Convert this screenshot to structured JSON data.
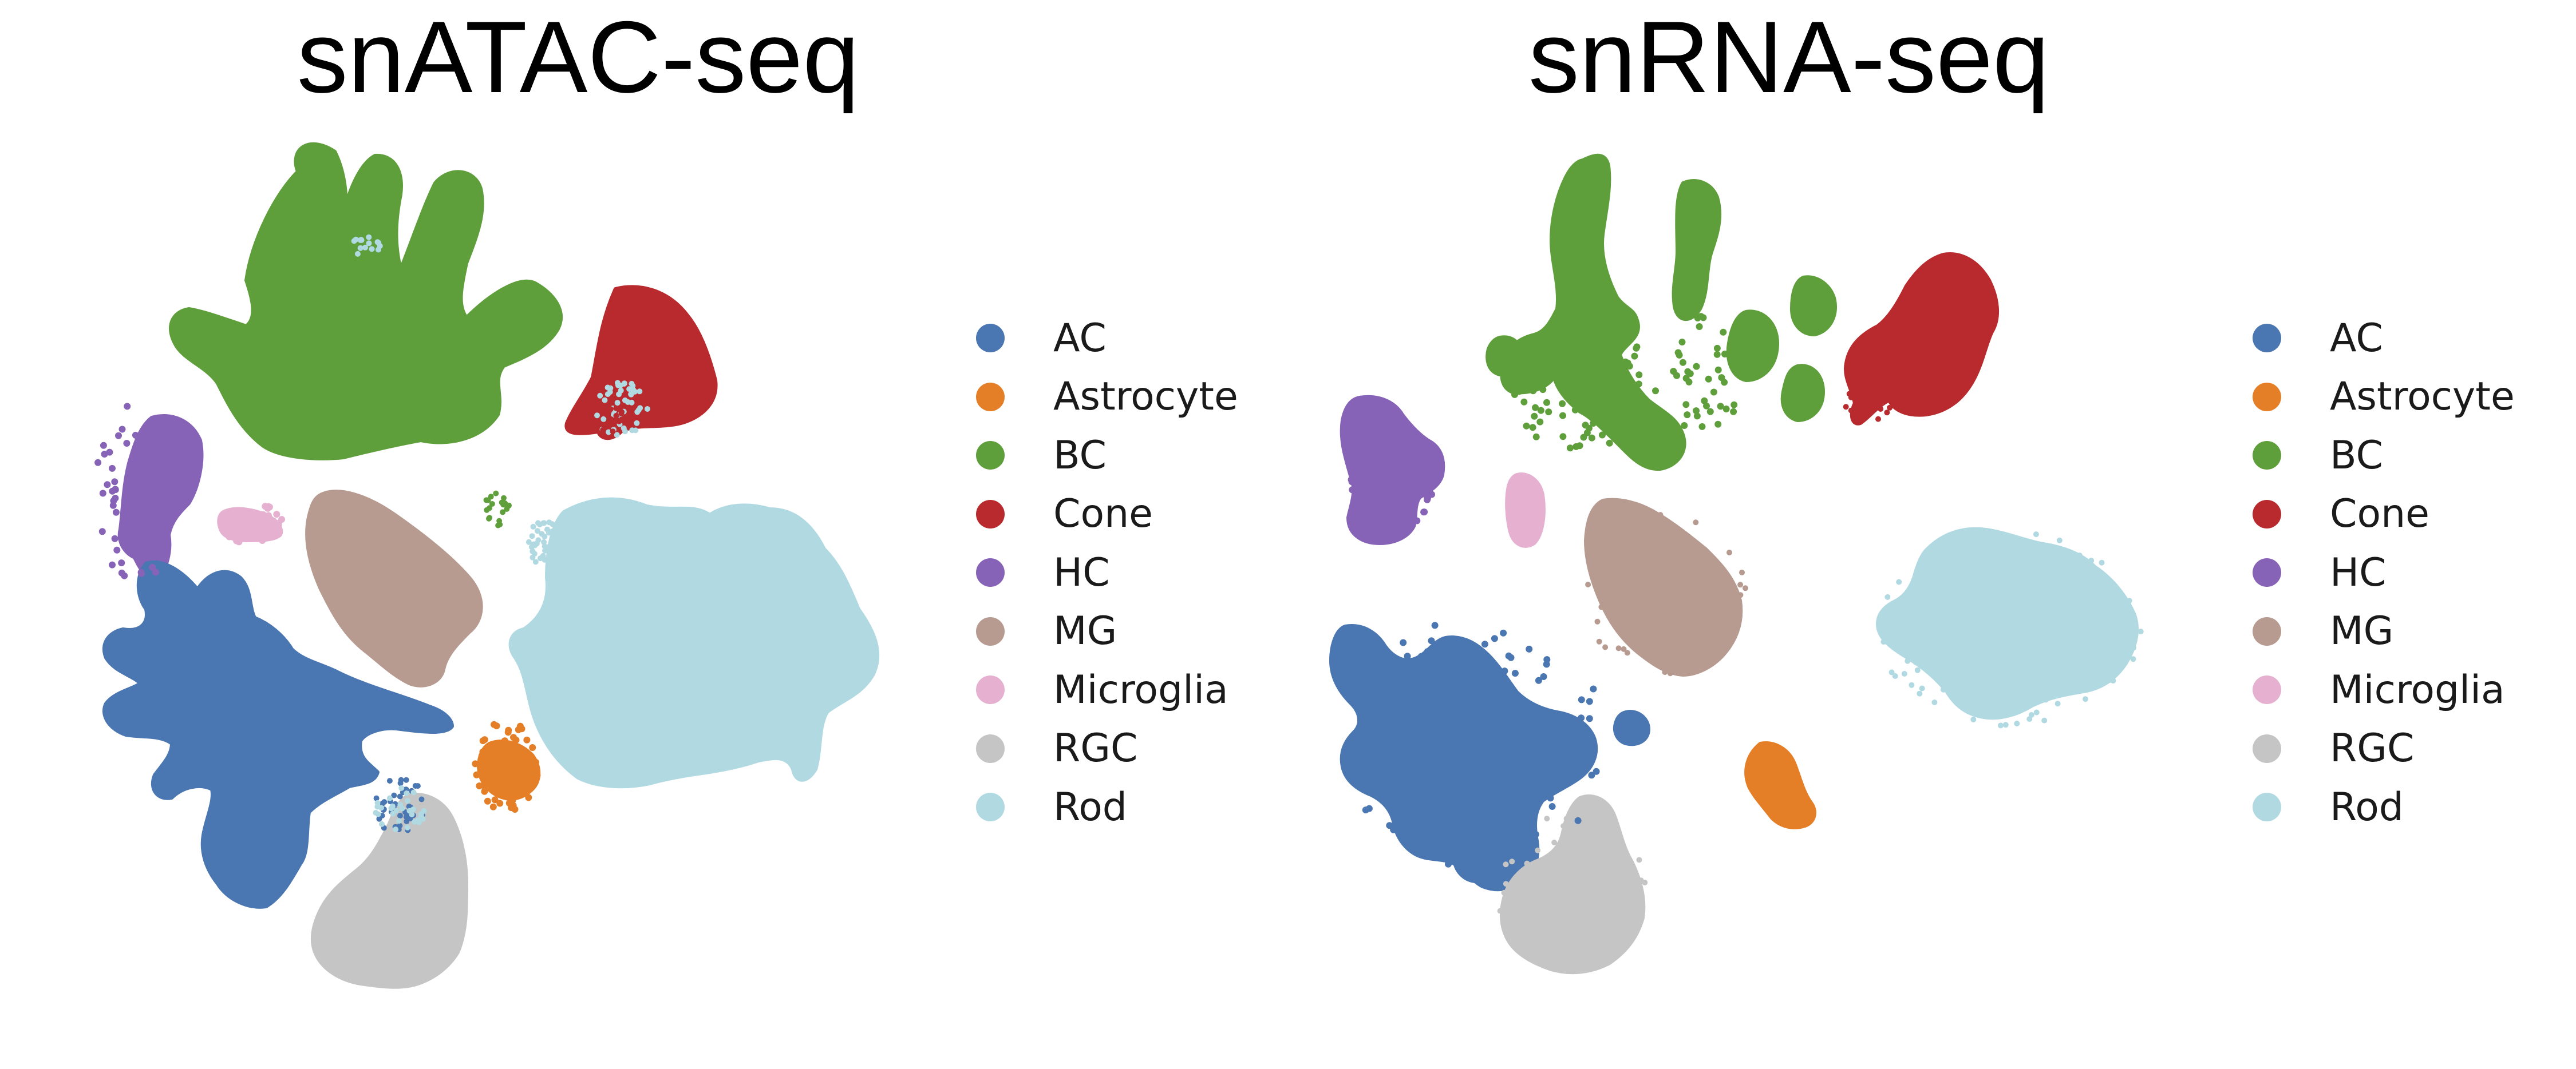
{
  "chart_data": [
    {
      "type": "scatter",
      "title": "snATAC-seq",
      "xlabel": "",
      "ylabel": "",
      "axes_visible": false,
      "grid": false,
      "legend_placement": "right",
      "legend": [
        "AC",
        "Astrocyte",
        "BC",
        "Cone",
        "HC",
        "MG",
        "Microglia",
        "RGC",
        "Rod"
      ],
      "colors": {
        "AC": "#4a76b1",
        "Astrocyte": "#e57f27",
        "BC": "#5f9f3b",
        "Cone": "#b82a2e",
        "HC": "#8763b7",
        "MG": "#b79a90",
        "Microglia": "#e6b1d0",
        "RGC": "#c5c5c5",
        "Rod": "#b0d9e2"
      }
    },
    {
      "type": "scatter",
      "title": "snRNA-seq",
      "xlabel": "",
      "ylabel": "",
      "axes_visible": false,
      "grid": false,
      "legend_placement": "right",
      "legend": [
        "AC",
        "Astrocyte",
        "BC",
        "Cone",
        "HC",
        "MG",
        "Microglia",
        "RGC",
        "Rod"
      ],
      "colors": {
        "AC": "#4a76b1",
        "Astrocyte": "#e57f27",
        "BC": "#5f9f3b",
        "Cone": "#b82a2e",
        "HC": "#8763b7",
        "MG": "#b79a90",
        "Microglia": "#e6b1d0",
        "RGC": "#c5c5c5",
        "Rod": "#b0d9e2"
      }
    }
  ]
}
